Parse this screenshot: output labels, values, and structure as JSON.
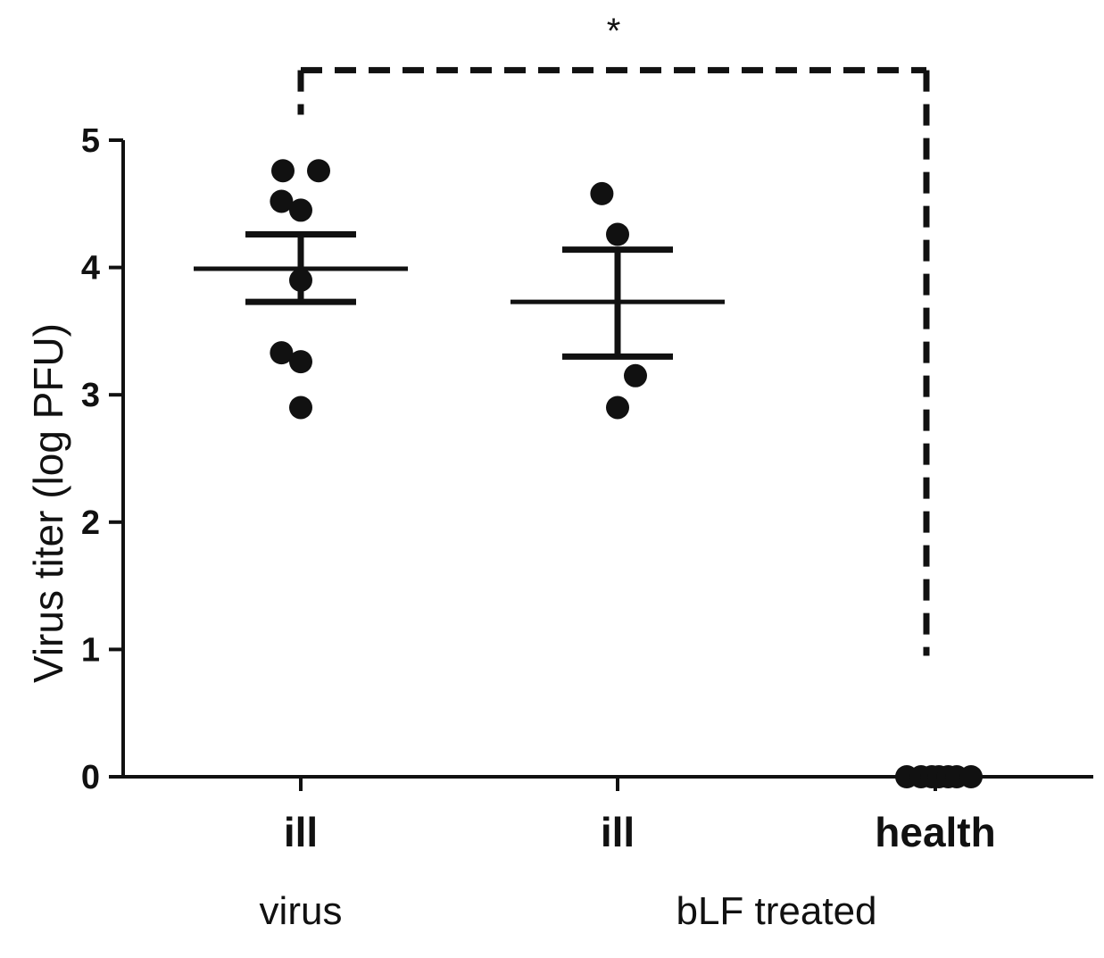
{
  "chart_data": {
    "type": "scatter",
    "ylabel": "Virus titer (log PFU)",
    "ylim": [
      0,
      5
    ],
    "yticks": [
      "0",
      "1",
      "2",
      "3",
      "4",
      "5"
    ],
    "categories": [
      "ill",
      "ill",
      "health"
    ],
    "groups": [
      {
        "label": "virus",
        "categories": [
          0
        ]
      },
      {
        "label": "bLF treated",
        "categories": [
          1,
          2
        ]
      }
    ],
    "series": [
      {
        "category_index": 0,
        "points": [
          {
            "dx": -0.25,
            "y": 4.76
          },
          {
            "dx": 0.25,
            "y": 4.76
          },
          {
            "dx": -0.27,
            "y": 4.52
          },
          {
            "dx": 0.0,
            "y": 4.45
          },
          {
            "dx": 0.0,
            "y": 3.9
          },
          {
            "dx": -0.27,
            "y": 3.33
          },
          {
            "dx": 0.0,
            "y": 3.26
          },
          {
            "dx": 0.0,
            "y": 2.9
          }
        ],
        "mean": 3.99,
        "sem_upper": 4.26,
        "sem_lower": 3.73
      },
      {
        "category_index": 1,
        "points": [
          {
            "dx": -0.22,
            "y": 4.58
          },
          {
            "dx": 0.0,
            "y": 4.26
          },
          {
            "dx": 0.25,
            "y": 3.15
          },
          {
            "dx": 0.0,
            "y": 2.9
          }
        ],
        "mean": 3.73,
        "sem_upper": 4.14,
        "sem_lower": 3.3
      },
      {
        "category_index": 2,
        "points": [
          {
            "dx": -0.4,
            "y": 0
          },
          {
            "dx": -0.2,
            "y": 0
          },
          {
            "dx": -0.05,
            "y": 0
          },
          {
            "dx": 0.05,
            "y": 0
          },
          {
            "dx": 0.18,
            "y": 0
          },
          {
            "dx": 0.3,
            "y": 0
          },
          {
            "dx": 0.5,
            "y": 0
          }
        ]
      }
    ],
    "significance": {
      "label": "*",
      "from_category": 0,
      "to_category": 2,
      "bracket_y": 5.55,
      "left_end_y": 5.2,
      "right_end_y": 0.95,
      "style": "dashed"
    }
  }
}
